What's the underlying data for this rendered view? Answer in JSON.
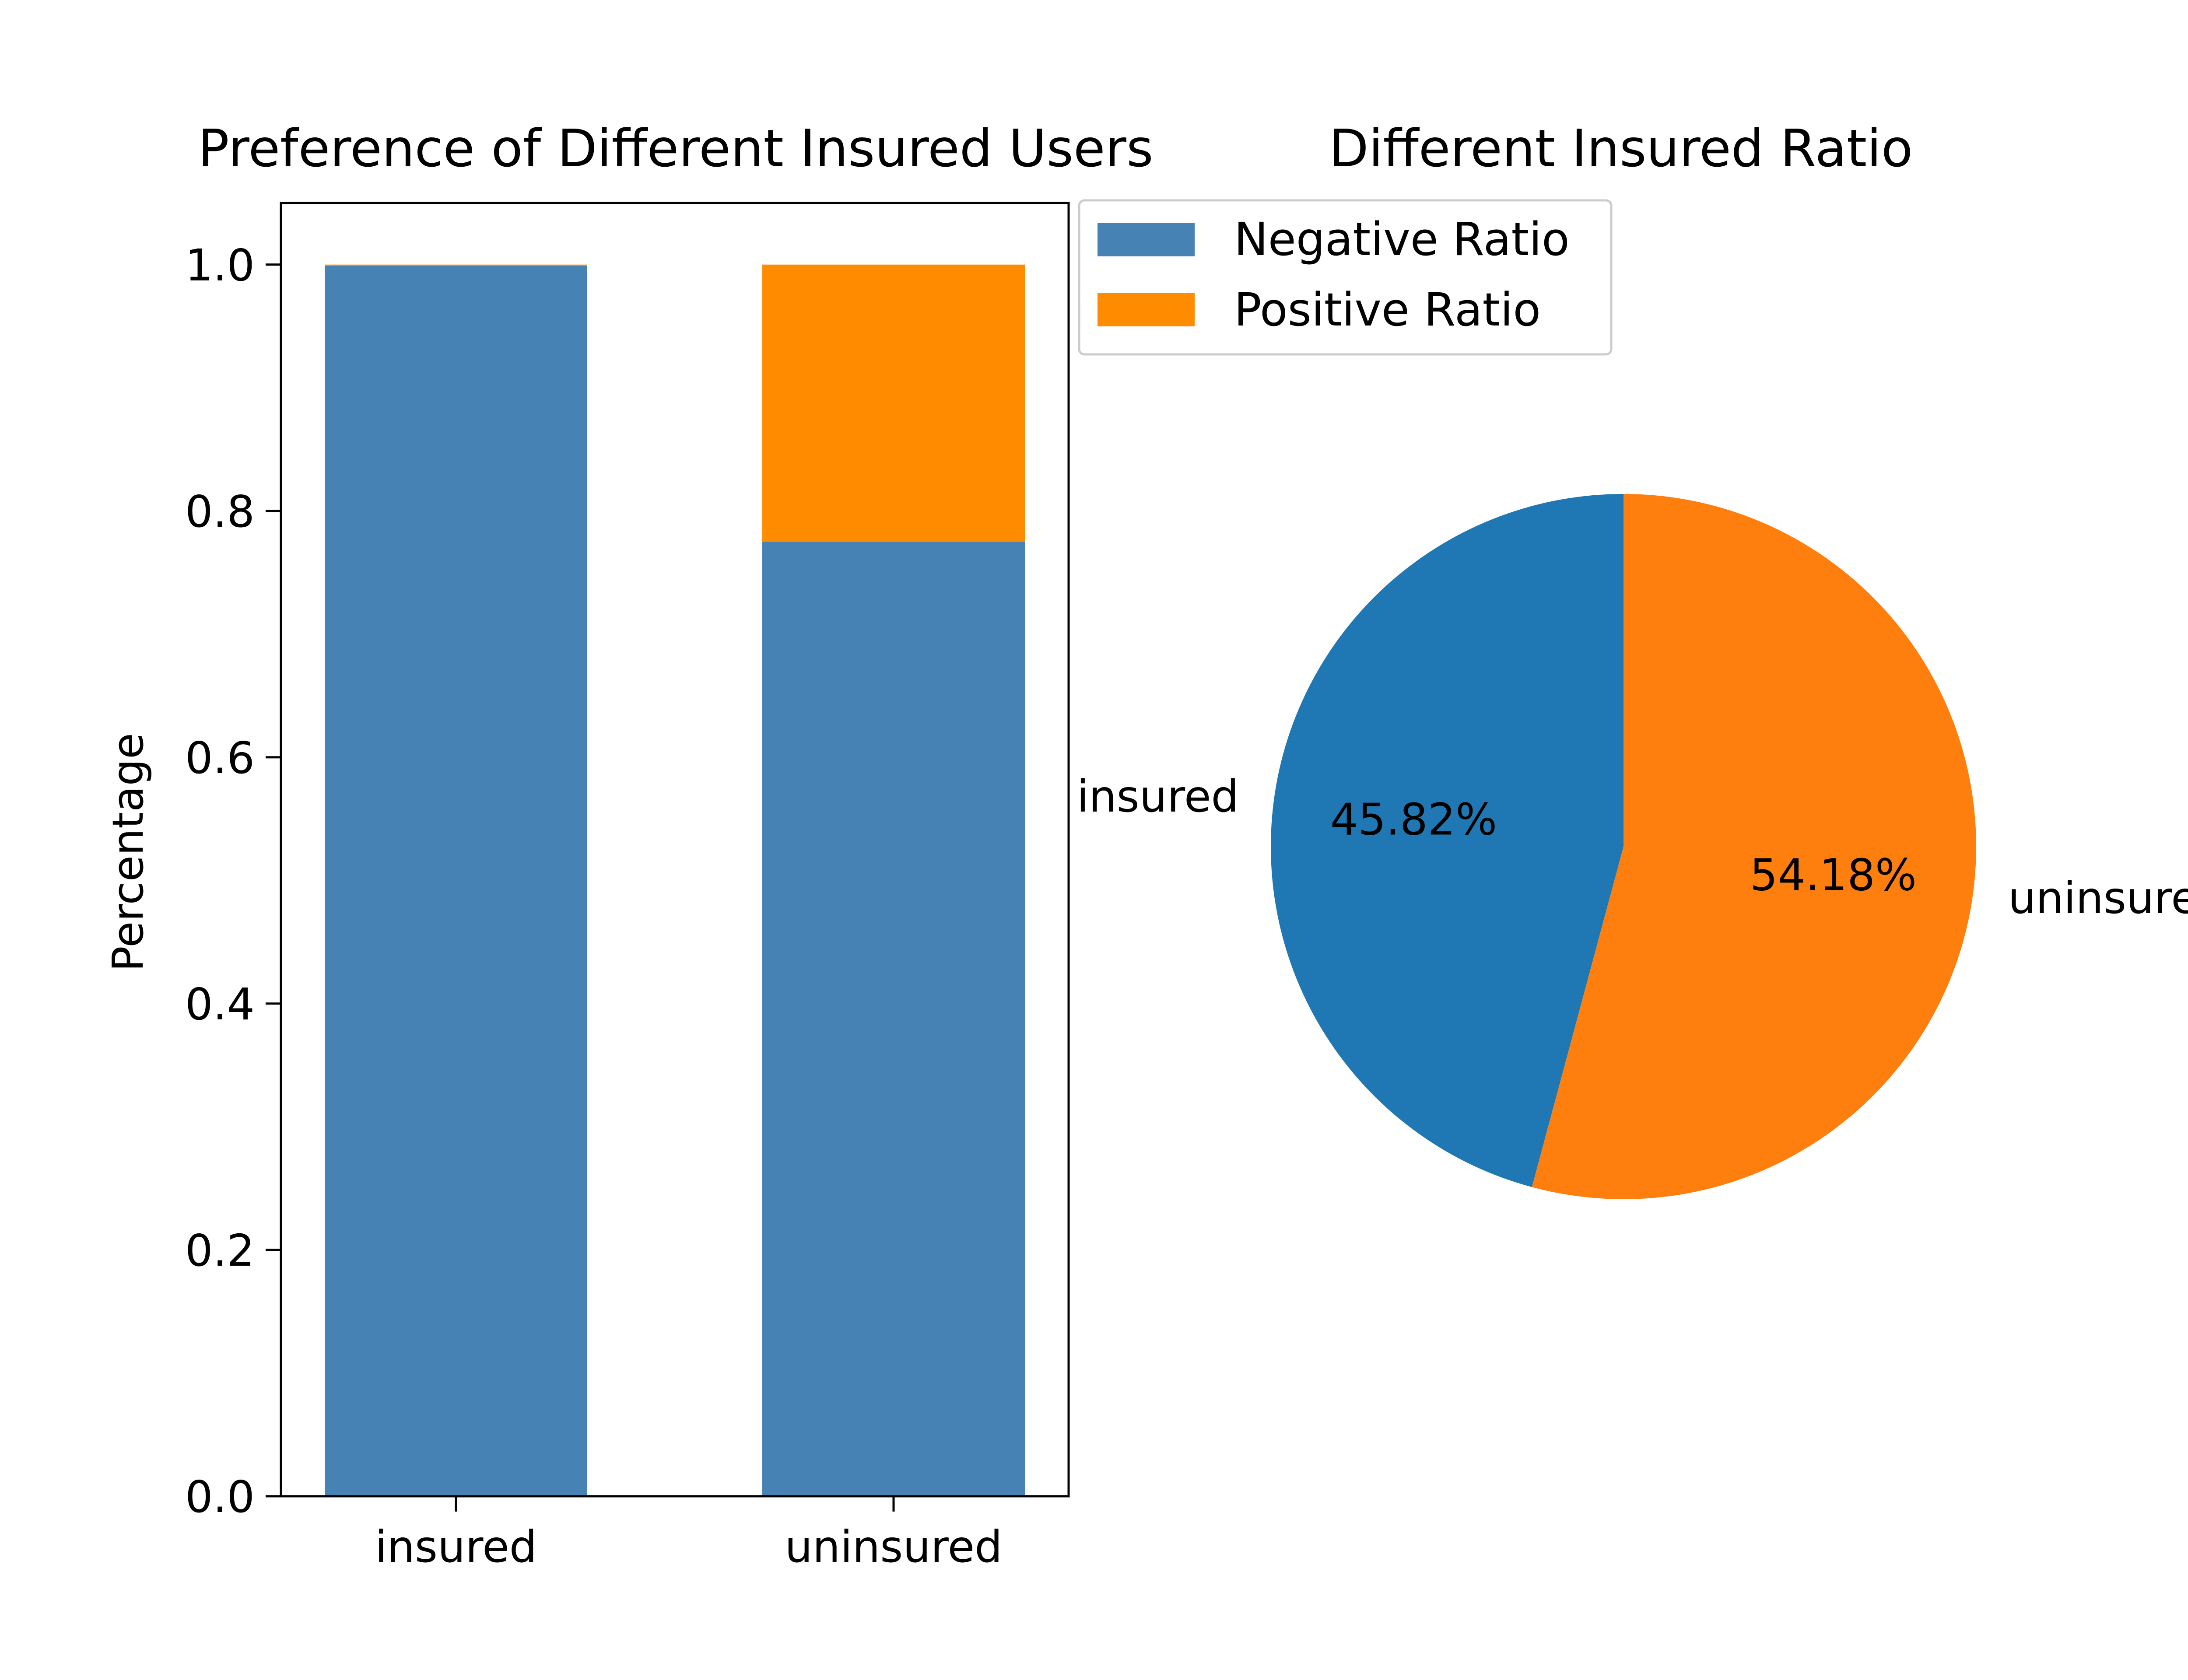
{
  "chart_data": [
    {
      "type": "bar",
      "stacked": true,
      "title": "Preference of Different Insured Users",
      "xlabel": "",
      "ylabel": "Percentage",
      "categories": [
        "insured",
        "uninsured"
      ],
      "series": [
        {
          "name": "Negative Ratio",
          "values": [
            0.999,
            0.775
          ],
          "color": "#4682b4"
        },
        {
          "name": "Positive Ratio",
          "values": [
            0.001,
            0.225
          ],
          "color": "#ff8c00"
        }
      ],
      "ylim": [
        0,
        1.05
      ],
      "yticks": [
        0.0,
        0.2,
        0.4,
        0.6,
        0.8,
        1.0
      ],
      "ytick_labels": [
        "0.0",
        "0.2",
        "0.4",
        "0.6",
        "0.8",
        "1.0"
      ],
      "grid": false,
      "legend": {
        "placement": "outside-top-right",
        "entries": [
          "Negative Ratio",
          "Positive Ratio"
        ]
      }
    },
    {
      "type": "pie",
      "title": "Different Insured  Ratio",
      "labels": [
        "insured",
        "uninsured"
      ],
      "values": [
        45.82,
        54.18
      ],
      "value_labels": [
        "45.82%",
        "54.18%"
      ],
      "colors": [
        "#1f77b4",
        "#ff7f0e"
      ],
      "start_angle_deg": 90,
      "direction": "counterclockwise"
    }
  ]
}
